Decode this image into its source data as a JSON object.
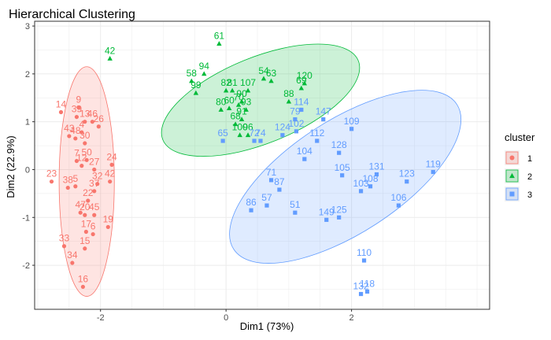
{
  "chart_data": {
    "type": "scatter",
    "title": "Hierarchical Clustering",
    "xlabel": "Dim1 (73%)",
    "ylabel": "Dim2 (22.9%)",
    "xlim": [
      -3.05,
      4.2
    ],
    "ylim": [
      -2.92,
      3.1
    ],
    "xticks": [
      -2,
      0,
      2
    ],
    "yticks": [
      -2,
      -1,
      0,
      1,
      2,
      3
    ],
    "grid": true,
    "legend": {
      "title": "cluster",
      "position": "right",
      "entries": [
        "1",
        "2",
        "3"
      ]
    },
    "colors": {
      "1": "#F8766D",
      "2": "#00BA38",
      "3": "#619CFF"
    },
    "ellipses": [
      {
        "cluster": "1",
        "center": [
          -2.22,
          -0.25
        ],
        "semi_axes": [
          0.44,
          2.4
        ],
        "angle_deg": 0
      },
      {
        "cluster": "2",
        "center": [
          0.55,
          1.45
        ],
        "semi_axes": [
          1.68,
          0.9
        ],
        "angle_deg": -22
      },
      {
        "cluster": "3",
        "center": [
          1.9,
          -0.15
        ],
        "semi_axes": [
          2.12,
          1.18
        ],
        "angle_deg": -33
      }
    ],
    "series": [
      {
        "name": "1",
        "marker": "circle",
        "points": [
          {
            "label": "14",
            "x": -2.63,
            "y": 1.2
          },
          {
            "label": "9",
            "x": -2.35,
            "y": 1.3
          },
          {
            "label": "39",
            "x": -2.38,
            "y": 1.1
          },
          {
            "label": "13",
            "x": -2.25,
            "y": 1.0
          },
          {
            "label": "46",
            "x": -2.13,
            "y": 1.0
          },
          {
            "label": "26",
            "x": -2.03,
            "y": 0.9
          },
          {
            "label": "43",
            "x": -2.5,
            "y": 0.7
          },
          {
            "label": "48",
            "x": -2.4,
            "y": 0.65
          },
          {
            "label": "4",
            "x": -2.3,
            "y": 0.78
          },
          {
            "label": "30",
            "x": -2.25,
            "y": 0.55
          },
          {
            "label": "7",
            "x": -2.38,
            "y": 0.18
          },
          {
            "label": "12",
            "x": -2.3,
            "y": 0.08
          },
          {
            "label": "50",
            "x": -2.22,
            "y": 0.2
          },
          {
            "label": "27",
            "x": -2.1,
            "y": 0.0
          },
          {
            "label": "24",
            "x": -1.82,
            "y": 0.1
          },
          {
            "label": "23",
            "x": -2.78,
            "y": -0.25
          },
          {
            "label": "38",
            "x": -2.52,
            "y": -0.38
          },
          {
            "label": "5",
            "x": -2.4,
            "y": -0.35
          },
          {
            "label": "42",
            "x": -1.85,
            "y": -0.25
          },
          {
            "label": "32",
            "x": -2.05,
            "y": -0.3
          },
          {
            "label": "37",
            "x": -2.1,
            "y": -0.45
          },
          {
            "label": "22",
            "x": -2.2,
            "y": -0.65
          },
          {
            "label": "47",
            "x": -2.32,
            "y": -0.9
          },
          {
            "label": "20",
            "x": -2.25,
            "y": -0.95
          },
          {
            "label": "45",
            "x": -2.1,
            "y": -0.95
          },
          {
            "label": "19",
            "x": -1.88,
            "y": -1.2
          },
          {
            "label": "17",
            "x": -2.23,
            "y": -1.3
          },
          {
            "label": "6",
            "x": -2.12,
            "y": -1.35
          },
          {
            "label": "15",
            "x": -2.25,
            "y": -1.65
          },
          {
            "label": "33",
            "x": -2.58,
            "y": -1.6
          },
          {
            "label": "34",
            "x": -2.45,
            "y": -1.95
          },
          {
            "label": "16",
            "x": -2.28,
            "y": -2.45
          }
        ]
      },
      {
        "name": "2",
        "marker": "triangle",
        "points": [
          {
            "label": "61",
            "x": -0.11,
            "y": 2.63
          },
          {
            "label": "42",
            "x": -1.85,
            "y": 2.32
          },
          {
            "label": "94",
            "x": -0.35,
            "y": 2.0
          },
          {
            "label": "58",
            "x": -0.55,
            "y": 1.85
          },
          {
            "label": "99",
            "x": -0.48,
            "y": 1.6
          },
          {
            "label": "82",
            "x": 0.0,
            "y": 1.65
          },
          {
            "label": "81",
            "x": 0.1,
            "y": 1.65
          },
          {
            "label": "107",
            "x": 0.35,
            "y": 1.65
          },
          {
            "label": "54",
            "x": 0.6,
            "y": 1.9
          },
          {
            "label": "63",
            "x": 0.72,
            "y": 1.85
          },
          {
            "label": "120",
            "x": 1.25,
            "y": 1.8
          },
          {
            "label": "69",
            "x": 1.2,
            "y": 1.7
          },
          {
            "label": "88",
            "x": 1.0,
            "y": 1.42
          },
          {
            "label": "90",
            "x": 0.25,
            "y": 1.42
          },
          {
            "label": "70",
            "x": 0.2,
            "y": 1.35
          },
          {
            "label": "80",
            "x": -0.08,
            "y": 1.25
          },
          {
            "label": "60",
            "x": 0.05,
            "y": 1.28
          },
          {
            "label": "93",
            "x": 0.32,
            "y": 1.25
          },
          {
            "label": "91",
            "x": 0.25,
            "y": 1.05
          },
          {
            "label": "68",
            "x": 0.15,
            "y": 0.95
          },
          {
            "label": "100",
            "x": 0.22,
            "y": 0.72
          },
          {
            "label": "96",
            "x": 0.35,
            "y": 0.72
          }
        ]
      },
      {
        "name": "3",
        "marker": "square",
        "points": [
          {
            "label": "114",
            "x": 1.2,
            "y": 1.25
          },
          {
            "label": "79",
            "x": 1.1,
            "y": 1.05
          },
          {
            "label": "147",
            "x": 1.55,
            "y": 1.05
          },
          {
            "label": "109",
            "x": 2.0,
            "y": 0.85
          },
          {
            "label": "124",
            "x": 0.9,
            "y": 0.72
          },
          {
            "label": "102",
            "x": 1.12,
            "y": 0.8
          },
          {
            "label": "74",
            "x": 0.55,
            "y": 0.6
          },
          {
            "label": "65",
            "x": -0.05,
            "y": 0.6
          },
          {
            "label": "72",
            "x": 0.45,
            "y": 0.6
          },
          {
            "label": "112",
            "x": 1.45,
            "y": 0.6
          },
          {
            "label": "128",
            "x": 1.8,
            "y": 0.35
          },
          {
            "label": "104",
            "x": 1.25,
            "y": 0.22
          },
          {
            "label": "119",
            "x": 3.3,
            "y": -0.05
          },
          {
            "label": "131",
            "x": 2.4,
            "y": -0.1
          },
          {
            "label": "123",
            "x": 2.88,
            "y": -0.25
          },
          {
            "label": "105",
            "x": 1.85,
            "y": -0.12
          },
          {
            "label": "108",
            "x": 2.3,
            "y": -0.35
          },
          {
            "label": "71",
            "x": 0.72,
            "y": -0.22
          },
          {
            "label": "87",
            "x": 0.85,
            "y": -0.42
          },
          {
            "label": "106",
            "x": 2.75,
            "y": -0.75
          },
          {
            "label": "86",
            "x": 0.4,
            "y": -0.85
          },
          {
            "label": "57",
            "x": 0.65,
            "y": -0.75
          },
          {
            "label": "51",
            "x": 1.1,
            "y": -0.9
          },
          {
            "label": "149",
            "x": 1.6,
            "y": -1.05
          },
          {
            "label": "125",
            "x": 1.8,
            "y": -1.0
          },
          {
            "label": "103",
            "x": 2.15,
            "y": -0.45
          },
          {
            "label": "110",
            "x": 2.2,
            "y": -1.9
          },
          {
            "label": "118",
            "x": 2.25,
            "y": -2.55
          },
          {
            "label": "132",
            "x": 2.15,
            "y": -2.6
          }
        ]
      }
    ]
  }
}
